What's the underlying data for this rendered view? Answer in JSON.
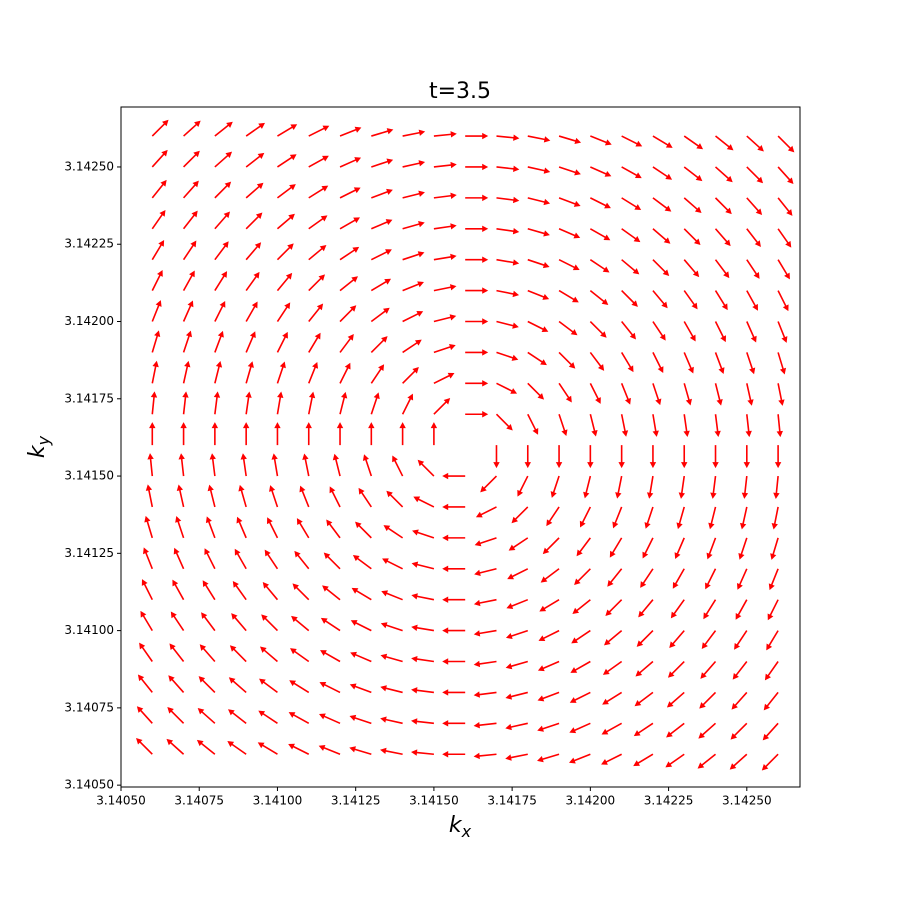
{
  "chart_data": {
    "type": "quiver",
    "title": "t=3.5",
    "xlabel": [
      "k",
      "x"
    ],
    "ylabel": [
      "k",
      "y"
    ],
    "color": "#ff0000",
    "x": [
      3.1406,
      3.1407,
      3.1408,
      3.1409,
      3.141,
      3.1411,
      3.1412,
      3.1413,
      3.1414,
      3.1415,
      3.1416,
      3.1417,
      3.1418,
      3.1419,
      3.142,
      3.1421,
      3.1422,
      3.1423,
      3.1424,
      3.1425,
      3.1426
    ],
    "y": [
      3.1406,
      3.1407,
      3.1408,
      3.1409,
      3.141,
      3.1411,
      3.1412,
      3.1413,
      3.1414,
      3.1415,
      3.1416,
      3.1417,
      3.1418,
      3.1419,
      3.142,
      3.1421,
      3.1422,
      3.1423,
      3.1424,
      3.1425,
      3.1426
    ],
    "u": [
      [
        -10,
        -10,
        -10,
        -10,
        -10,
        -10,
        -10,
        -10,
        -10,
        -10,
        -10,
        -10,
        -10,
        -10,
        -10,
        -10,
        -10,
        -10,
        -10,
        -10,
        -10
      ],
      [
        -9,
        -9,
        -9,
        -9,
        -9,
        -9,
        -9,
        -9,
        -9,
        -9,
        -9,
        -9,
        -9,
        -9,
        -9,
        -9,
        -9,
        -9,
        -9,
        -9,
        -9
      ],
      [
        -8,
        -8,
        -8,
        -8,
        -8,
        -8,
        -8,
        -8,
        -8,
        -8,
        -8,
        -8,
        -8,
        -8,
        -8,
        -8,
        -8,
        -8,
        -8,
        -8,
        -8
      ],
      [
        -7,
        -7,
        -7,
        -7,
        -7,
        -7,
        -7,
        -7,
        -7,
        -7,
        -7,
        -7,
        -7,
        -7,
        -7,
        -7,
        -7,
        -7,
        -7,
        -7,
        -7
      ],
      [
        -6,
        -6,
        -6,
        -6,
        -6,
        -6,
        -6,
        -6,
        -6,
        -6,
        -6,
        -6,
        -6,
        -6,
        -6,
        -6,
        -6,
        -6,
        -6,
        -6,
        -6
      ],
      [
        -5,
        -5,
        -5,
        -5,
        -5,
        -5,
        -5,
        -5,
        -5,
        -5,
        -5,
        -5,
        -5,
        -5,
        -5,
        -5,
        -5,
        -5,
        -5,
        -5,
        -5
      ],
      [
        -4,
        -4,
        -4,
        -4,
        -4,
        -4,
        -4,
        -4,
        -4,
        -4,
        -4,
        -4,
        -4,
        -4,
        -4,
        -4,
        -4,
        -4,
        -4,
        -4,
        -4
      ],
      [
        -3,
        -3,
        -3,
        -3,
        -3,
        -3,
        -3,
        -3,
        -3,
        -3,
        -3,
        -3,
        -3,
        -3,
        -3,
        -3,
        -3,
        -3,
        -3,
        -3,
        -3
      ],
      [
        -2,
        -2,
        -2,
        -2,
        -2,
        -2,
        -2,
        -2,
        -2,
        -2,
        -2,
        -2,
        -2,
        -2,
        -2,
        -2,
        -2,
        -2,
        -2,
        -2,
        -2
      ],
      [
        -1,
        -1,
        -1,
        -1,
        -1,
        -1,
        -1,
        -1,
        -1,
        -1,
        -1,
        -1,
        -1,
        -1,
        -1,
        -1,
        -1,
        -1,
        -1,
        -1,
        -1
      ],
      [
        0,
        0,
        0,
        0,
        0,
        0,
        0,
        0,
        0,
        0,
        0,
        0,
        0,
        0,
        0,
        0,
        0,
        0,
        0,
        0,
        0
      ],
      [
        1,
        1,
        1,
        1,
        1,
        1,
        1,
        1,
        1,
        1,
        1,
        1,
        1,
        1,
        1,
        1,
        1,
        1,
        1,
        1,
        1
      ],
      [
        2,
        2,
        2,
        2,
        2,
        2,
        2,
        2,
        2,
        2,
        2,
        2,
        2,
        2,
        2,
        2,
        2,
        2,
        2,
        2,
        2
      ],
      [
        3,
        3,
        3,
        3,
        3,
        3,
        3,
        3,
        3,
        3,
        3,
        3,
        3,
        3,
        3,
        3,
        3,
        3,
        3,
        3,
        3
      ],
      [
        4,
        4,
        4,
        4,
        4,
        4,
        4,
        4,
        4,
        4,
        4,
        4,
        4,
        4,
        4,
        4,
        4,
        4,
        4,
        4,
        4
      ],
      [
        5,
        5,
        5,
        5,
        5,
        5,
        5,
        5,
        5,
        5,
        5,
        5,
        5,
        5,
        5,
        5,
        5,
        5,
        5,
        5,
        5
      ],
      [
        6,
        6,
        6,
        6,
        6,
        6,
        6,
        6,
        6,
        6,
        6,
        6,
        6,
        6,
        6,
        6,
        6,
        6,
        6,
        6,
        6
      ],
      [
        7,
        7,
        7,
        7,
        7,
        7,
        7,
        7,
        7,
        7,
        7,
        7,
        7,
        7,
        7,
        7,
        7,
        7,
        7,
        7,
        7
      ],
      [
        8,
        8,
        8,
        8,
        8,
        8,
        8,
        8,
        8,
        8,
        8,
        8,
        8,
        8,
        8,
        8,
        8,
        8,
        8,
        8,
        8
      ],
      [
        9,
        9,
        9,
        9,
        9,
        9,
        9,
        9,
        9,
        9,
        9,
        9,
        9,
        9,
        9,
        9,
        9,
        9,
        9,
        9,
        9
      ],
      [
        10,
        10,
        10,
        10,
        10,
        10,
        10,
        10,
        10,
        10,
        10,
        10,
        10,
        10,
        10,
        10,
        10,
        10,
        10,
        10,
        10
      ]
    ],
    "v": [
      [
        10,
        9,
        8,
        7,
        6,
        5,
        4,
        3,
        2,
        1,
        0,
        -1,
        -2,
        -3,
        -4,
        -5,
        -6,
        -7,
        -8,
        -9,
        -10
      ],
      [
        10,
        9,
        8,
        7,
        6,
        5,
        4,
        3,
        2,
        1,
        0,
        -1,
        -2,
        -3,
        -4,
        -5,
        -6,
        -7,
        -8,
        -9,
        -10
      ],
      [
        10,
        9,
        8,
        7,
        6,
        5,
        4,
        3,
        2,
        1,
        0,
        -1,
        -2,
        -3,
        -4,
        -5,
        -6,
        -7,
        -8,
        -9,
        -10
      ],
      [
        10,
        9,
        8,
        7,
        6,
        5,
        4,
        3,
        2,
        1,
        0,
        -1,
        -2,
        -3,
        -4,
        -5,
        -6,
        -7,
        -8,
        -9,
        -10
      ],
      [
        10,
        9,
        8,
        7,
        6,
        5,
        4,
        3,
        2,
        1,
        0,
        -1,
        -2,
        -3,
        -4,
        -5,
        -6,
        -7,
        -8,
        -9,
        -10
      ],
      [
        10,
        9,
        8,
        7,
        6,
        5,
        4,
        3,
        2,
        1,
        0,
        -1,
        -2,
        -3,
        -4,
        -5,
        -6,
        -7,
        -8,
        -9,
        -10
      ],
      [
        10,
        9,
        8,
        7,
        6,
        5,
        4,
        3,
        2,
        1,
        0,
        -1,
        -2,
        -3,
        -4,
        -5,
        -6,
        -7,
        -8,
        -9,
        -10
      ],
      [
        10,
        9,
        8,
        7,
        6,
        5,
        4,
        3,
        2,
        1,
        0,
        -1,
        -2,
        -3,
        -4,
        -5,
        -6,
        -7,
        -8,
        -9,
        -10
      ],
      [
        10,
        9,
        8,
        7,
        6,
        5,
        4,
        3,
        2,
        1,
        0,
        -1,
        -2,
        -3,
        -4,
        -5,
        -6,
        -7,
        -8,
        -9,
        -10
      ],
      [
        10,
        9,
        8,
        7,
        6,
        5,
        4,
        3,
        2,
        1,
        0,
        -1,
        -2,
        -3,
        -4,
        -5,
        -6,
        -7,
        -8,
        -9,
        -10
      ],
      [
        10,
        9,
        8,
        7,
        6,
        5,
        4,
        3,
        2,
        1,
        0,
        -1,
        -2,
        -3,
        -4,
        -5,
        -6,
        -7,
        -8,
        -9,
        -10
      ],
      [
        10,
        9,
        8,
        7,
        6,
        5,
        4,
        3,
        2,
        1,
        0,
        -1,
        -2,
        -3,
        -4,
        -5,
        -6,
        -7,
        -8,
        -9,
        -10
      ],
      [
        10,
        9,
        8,
        7,
        6,
        5,
        4,
        3,
        2,
        1,
        0,
        -1,
        -2,
        -3,
        -4,
        -5,
        -6,
        -7,
        -8,
        -9,
        -10
      ],
      [
        10,
        9,
        8,
        7,
        6,
        5,
        4,
        3,
        2,
        1,
        0,
        -1,
        -2,
        -3,
        -4,
        -5,
        -6,
        -7,
        -8,
        -9,
        -10
      ],
      [
        10,
        9,
        8,
        7,
        6,
        5,
        4,
        3,
        2,
        1,
        0,
        -1,
        -2,
        -3,
        -4,
        -5,
        -6,
        -7,
        -8,
        -9,
        -10
      ],
      [
        10,
        9,
        8,
        7,
        6,
        5,
        4,
        3,
        2,
        1,
        0,
        -1,
        -2,
        -3,
        -4,
        -5,
        -6,
        -7,
        -8,
        -9,
        -10
      ],
      [
        10,
        9,
        8,
        7,
        6,
        5,
        4,
        3,
        2,
        1,
        0,
        -1,
        -2,
        -3,
        -4,
        -5,
        -6,
        -7,
        -8,
        -9,
        -10
      ],
      [
        10,
        9,
        8,
        7,
        6,
        5,
        4,
        3,
        2,
        1,
        0,
        -1,
        -2,
        -3,
        -4,
        -5,
        -6,
        -7,
        -8,
        -9,
        -10
      ],
      [
        10,
        9,
        8,
        7,
        6,
        5,
        4,
        3,
        2,
        1,
        0,
        -1,
        -2,
        -3,
        -4,
        -5,
        -6,
        -7,
        -8,
        -9,
        -10
      ],
      [
        10,
        9,
        8,
        7,
        6,
        5,
        4,
        3,
        2,
        1,
        0,
        -1,
        -2,
        -3,
        -4,
        -5,
        -6,
        -7,
        -8,
        -9,
        -10
      ],
      [
        10,
        9,
        8,
        7,
        6,
        5,
        4,
        3,
        2,
        1,
        0,
        -1,
        -2,
        -3,
        -4,
        -5,
        -6,
        -7,
        -8,
        -9,
        -10
      ]
    ],
    "xlim": [
      3.1405,
      3.14267
    ],
    "ylim": [
      3.140494,
      3.142694
    ],
    "xticks": [
      {
        "value": 3.1405,
        "label": "3.14050"
      },
      3.14075,
      {
        "value": 3.141,
        "label": "3.14100"
      },
      3.14125,
      {
        "value": 3.1415,
        "label": "3.14150"
      },
      3.14175,
      {
        "value": 3.142,
        "label": "3.14200"
      },
      3.14225,
      {
        "value": 3.1425,
        "label": "3.14250"
      }
    ],
    "yticks": [
      {
        "value": 3.1405,
        "label": "3.14050"
      },
      3.14075,
      {
        "value": 3.141,
        "label": "3.14100"
      },
      3.14125,
      {
        "value": 3.1415,
        "label": "3.14150"
      },
      3.14175,
      {
        "value": 3.142,
        "label": "3.14200"
      },
      3.14225,
      {
        "value": 3.1425,
        "label": "3.14250"
      }
    ]
  }
}
